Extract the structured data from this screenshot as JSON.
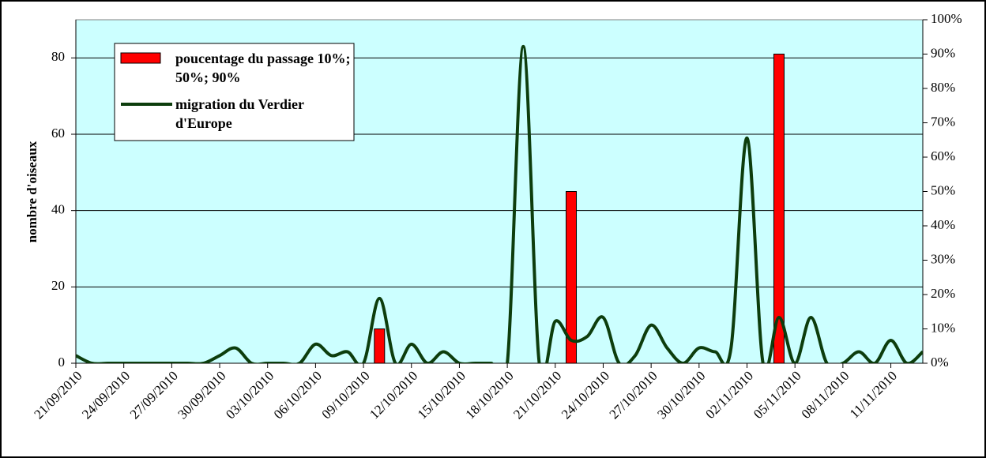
{
  "chart_data": {
    "type": "line-bar",
    "y_label": "nombre d'oiseaux",
    "categories": [
      "21/09/2010",
      null,
      null,
      "24/09/2010",
      null,
      null,
      "27/09/2010",
      null,
      null,
      "30/09/2010",
      null,
      null,
      "03/10/2010",
      null,
      null,
      "06/10/2010",
      null,
      null,
      "09/10/2010",
      null,
      null,
      "12/10/2010",
      null,
      null,
      "15/10/2010",
      null,
      null,
      "18/10/2010",
      null,
      null,
      "21/10/2010",
      null,
      null,
      "24/10/2010",
      null,
      null,
      "27/10/2010",
      null,
      null,
      "30/10/2010",
      null,
      null,
      "02/11/2010",
      null,
      null,
      "05/11/2010",
      null,
      null,
      "08/11/2010",
      null,
      null,
      "11/11/2010",
      null,
      null
    ],
    "series": [
      {
        "name": "poucentage du passage 10%; 50%; 90%",
        "kind": "bar",
        "axis": "y2",
        "color": "#ff0000",
        "values": [
          null,
          null,
          null,
          null,
          null,
          null,
          null,
          null,
          null,
          null,
          null,
          null,
          null,
          null,
          null,
          null,
          null,
          null,
          null,
          10,
          null,
          null,
          null,
          null,
          null,
          null,
          null,
          null,
          null,
          null,
          null,
          50,
          null,
          null,
          null,
          null,
          null,
          null,
          null,
          null,
          null,
          null,
          null,
          null,
          90,
          null,
          null,
          null,
          null,
          null,
          null,
          null,
          null,
          null
        ]
      },
      {
        "name": "migration du Verdier d'Europe",
        "kind": "line",
        "color": "#0d3d0d",
        "values": [
          2,
          0,
          0,
          0,
          0,
          0,
          0,
          0,
          0,
          2,
          4,
          0,
          0,
          0,
          0,
          5,
          2,
          3,
          0,
          17,
          0,
          5,
          0,
          3,
          0,
          0,
          0,
          0,
          83,
          0,
          11,
          6,
          7,
          12,
          0,
          2,
          10,
          4,
          0,
          4,
          3,
          4,
          59,
          0,
          12,
          0,
          12,
          0,
          0,
          3,
          0,
          6,
          0,
          3
        ]
      }
    ],
    "ylim": [
      0,
      90
    ],
    "yticks": [
      0,
      20,
      40,
      60,
      80
    ],
    "y2lim": [
      0,
      100
    ],
    "y2ticks": [
      {
        "value": 0,
        "label": "0%"
      },
      {
        "value": 10,
        "label": "10%"
      },
      {
        "value": 20,
        "label": "20%"
      },
      {
        "value": 30,
        "label": "30%"
      },
      {
        "value": 40,
        "label": "40%"
      },
      {
        "value": 50,
        "label": "50%"
      },
      {
        "value": 60,
        "label": "60%"
      },
      {
        "value": 70,
        "label": "70%"
      },
      {
        "value": 80,
        "label": "80%"
      },
      {
        "value": 90,
        "label": "90%"
      },
      {
        "value": 100,
        "label": "100%"
      }
    ],
    "grid": true,
    "background": "#ccffff"
  }
}
